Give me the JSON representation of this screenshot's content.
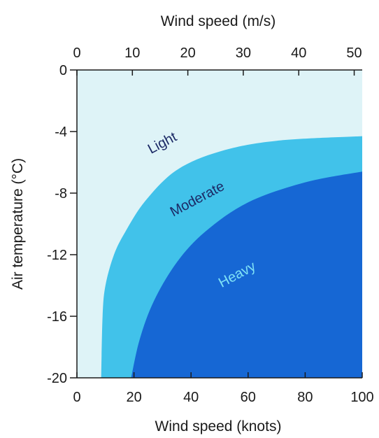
{
  "chart_data": {
    "type": "area",
    "title": "",
    "xlabel_bottom": "Wind speed (knots)",
    "xlabel_top": "Wind speed (m/s)",
    "ylabel": "Air temperature (°C)",
    "xlim": [
      0,
      100
    ],
    "ylim": [
      -20,
      0
    ],
    "x_ticks_bottom": [
      0,
      20,
      40,
      60,
      80,
      100
    ],
    "x_ticks_top": [
      0,
      10,
      20,
      30,
      40,
      50
    ],
    "y_ticks": [
      0,
      -4,
      -8,
      -12,
      -16,
      -20
    ],
    "grid": false,
    "regions": [
      {
        "name": "Light",
        "color": "#def3f7",
        "label_color": "#1c2a66"
      },
      {
        "name": "Moderate",
        "color": "#41c2ea",
        "label_color": "#1c2a66"
      },
      {
        "name": "Heavy",
        "color": "#1667d4",
        "label_color": "#7fe2f6"
      }
    ],
    "boundaries": [
      {
        "between": [
          "Light",
          "Moderate"
        ],
        "points": [
          [
            8.5,
            -20
          ],
          [
            9,
            -16
          ],
          [
            10,
            -14
          ],
          [
            13,
            -12
          ],
          [
            17,
            -10.5
          ],
          [
            24,
            -8.5
          ],
          [
            35,
            -6.5
          ],
          [
            50,
            -5.3
          ],
          [
            70,
            -4.6
          ],
          [
            100,
            -4.3
          ]
        ]
      },
      {
        "between": [
          "Moderate",
          "Heavy"
        ],
        "points": [
          [
            19,
            -20
          ],
          [
            22,
            -17.5
          ],
          [
            27,
            -15
          ],
          [
            35,
            -12.5
          ],
          [
            45,
            -10.5
          ],
          [
            60,
            -8.6
          ],
          [
            80,
            -7.3
          ],
          [
            100,
            -6.6
          ]
        ]
      }
    ]
  }
}
